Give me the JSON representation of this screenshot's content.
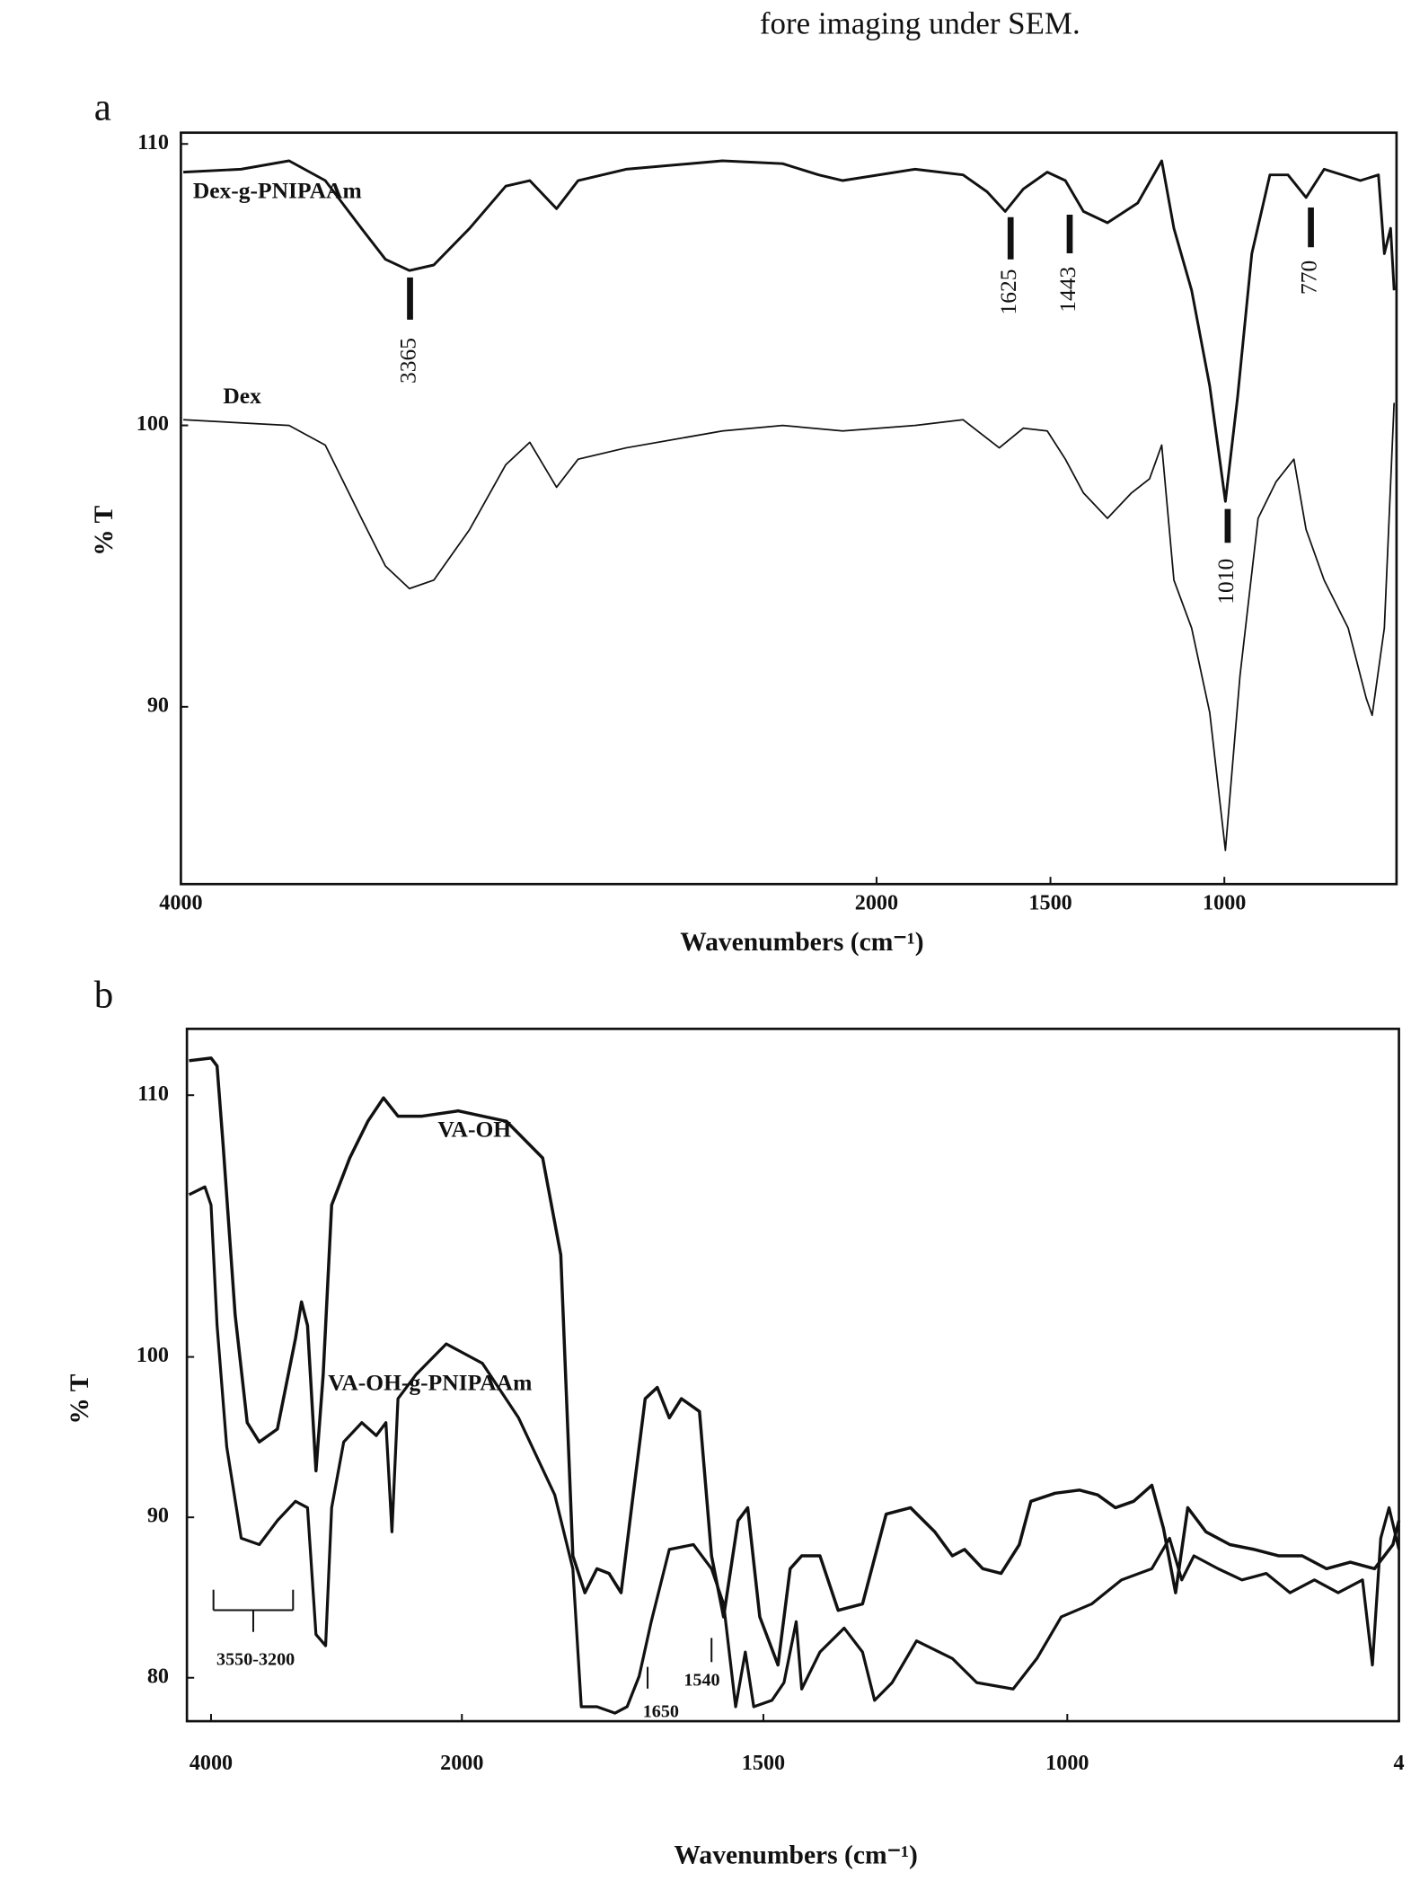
{
  "page_text": "fore imaging under SEM.",
  "chart_data": [
    {
      "type": "line",
      "panel_label": "a",
      "ylabel": "% T",
      "xlabel": "Wavenumbers (cm⁻¹)",
      "xlim": [
        4000,
        505
      ],
      "ylim": [
        83.7,
        110.4
      ],
      "xticks": [
        4000,
        2000,
        1500,
        1000
      ],
      "yticks": [
        90,
        100,
        110
      ],
      "annotations": [
        "3365",
        "1625",
        "1443",
        "770",
        "1010"
      ],
      "series": [
        {
          "name": "Dex-g-PNIPAAm",
          "color": "#111111",
          "x": [
            3993,
            3827,
            3689,
            3585,
            3481,
            3412,
            3343,
            3273,
            3170,
            3066,
            2997,
            2920,
            2858,
            2720,
            2443,
            2270,
            2166,
            2097,
            1889,
            1751,
            1682,
            1630,
            1578,
            1509,
            1457,
            1405,
            1336,
            1249,
            1180,
            1145,
            1094,
            1042,
            997,
            962,
            921,
            869,
            817,
            765,
            713,
            609,
            557,
            540,
            522,
            512
          ],
          "values": [
            109.0,
            109.1,
            109.4,
            108.7,
            107.0,
            105.9,
            105.5,
            105.7,
            107.0,
            108.5,
            108.7,
            107.7,
            108.7,
            109.1,
            109.4,
            109.3,
            108.9,
            108.7,
            109.1,
            108.9,
            108.3,
            107.6,
            108.4,
            109.0,
            108.7,
            107.6,
            107.2,
            107.9,
            109.4,
            107.0,
            104.8,
            101.4,
            97.3,
            101.0,
            106.1,
            108.9,
            108.9,
            108.1,
            109.1,
            108.7,
            108.9,
            106.1,
            107.0,
            104.8
          ]
        },
        {
          "name": "Dex",
          "color": "#111111",
          "x": [
            3993,
            3689,
            3585,
            3481,
            3412,
            3343,
            3273,
            3170,
            3066,
            2997,
            2920,
            2858,
            2720,
            2443,
            2270,
            2097,
            1889,
            1751,
            1647,
            1578,
            1509,
            1457,
            1405,
            1336,
            1267,
            1215,
            1180,
            1145,
            1094,
            1042,
            997,
            955,
            903,
            851,
            800,
            765,
            713,
            644,
            592,
            575,
            540,
            512
          ],
          "values": [
            100.2,
            100.0,
            99.3,
            96.7,
            95.0,
            94.2,
            94.5,
            96.3,
            98.6,
            99.4,
            97.8,
            98.8,
            99.2,
            99.8,
            100.0,
            99.8,
            100.0,
            100.2,
            99.2,
            99.9,
            99.8,
            98.8,
            97.6,
            96.7,
            97.6,
            98.1,
            99.3,
            94.5,
            92.8,
            89.8,
            84.9,
            91.1,
            96.7,
            98.0,
            98.8,
            96.3,
            94.5,
            92.8,
            90.3,
            89.7,
            92.8,
            100.8
          ]
        }
      ]
    },
    {
      "type": "line",
      "panel_label": "b",
      "ylabel": "% T",
      "xlabel": "Wavenumbers (cm⁻¹)",
      "xlim": [
        4190,
        400
      ],
      "ylim": [
        77.3,
        112.5
      ],
      "xticks": [
        4000,
        2000,
        1500,
        1000,
        {
          "value": 400,
          "label": "4"
        }
      ],
      "yticks": [
        80,
        90,
        100,
        110
      ],
      "annotations": [
        "3550-3200",
        "1650",
        "1540"
      ],
      "series": [
        {
          "name": "VA-OH",
          "color": "#111111",
          "x": [
            4173,
            4000,
            3952,
            3904,
            3808,
            3712,
            3615,
            3471,
            3327,
            3279,
            3231,
            3163,
            3106,
            3038,
            2894,
            2750,
            2625,
            2510,
            2317,
            2029,
            1926,
            1866,
            1836,
            1816,
            1796,
            1776,
            1756,
            1736,
            1716,
            1696,
            1676,
            1656,
            1636,
            1606,
            1586,
            1566,
            1542,
            1526,
            1506,
            1476,
            1456,
            1437,
            1407,
            1377,
            1337,
            1298,
            1258,
            1218,
            1189,
            1169,
            1139,
            1109,
            1079,
            1060,
            1020,
            978,
            945,
            913,
            880,
            847,
            826,
            804,
            782,
            749,
            706,
            662,
            618,
            575,
            531,
            488,
            444,
            411,
            400
          ],
          "values": [
            111.3,
            111.4,
            111.1,
            108.1,
            101.6,
            95.9,
            94.7,
            95.5,
            100.7,
            102.1,
            101.2,
            92.9,
            98.9,
            105.8,
            107.6,
            109.0,
            109.9,
            109.2,
            109.2,
            109.4,
            109.0,
            107.6,
            103.9,
            87.6,
            85.3,
            86.8,
            86.5,
            85.3,
            91.4,
            97.4,
            98.1,
            96.2,
            97.4,
            96.6,
            87.6,
            83.8,
            89.8,
            90.6,
            83.8,
            80.8,
            86.8,
            87.6,
            87.6,
            84.2,
            84.6,
            90.2,
            90.6,
            89.1,
            87.6,
            88.0,
            86.8,
            86.5,
            88.3,
            91.0,
            91.5,
            91.7,
            91.4,
            90.6,
            91.0,
            92.0,
            89.3,
            85.3,
            90.6,
            89.1,
            88.3,
            88.0,
            87.6,
            87.6,
            86.8,
            87.2,
            86.8,
            88.3,
            89.8
          ]
        },
        {
          "name": "VA-OH-g-PNIPAAm",
          "color": "#111111",
          "x": [
            4173,
            4048,
            4000,
            3952,
            3875,
            3760,
            3615,
            3471,
            3327,
            3231,
            3163,
            3087,
            3038,
            2942,
            2798,
            2683,
            2606,
            2558,
            2510,
            2365,
            2125,
            1966,
            1906,
            1846,
            1816,
            1802,
            1776,
            1746,
            1726,
            1706,
            1686,
            1656,
            1616,
            1586,
            1566,
            1546,
            1530,
            1516,
            1486,
            1466,
            1446,
            1437,
            1407,
            1367,
            1337,
            1317,
            1288,
            1248,
            1189,
            1149,
            1089,
            1050,
            1010,
            956,
            902,
            847,
            815,
            793,
            771,
            727,
            684,
            640,
            597,
            553,
            510,
            466,
            448,
            433,
            418,
            400
          ],
          "values": [
            106.2,
            106.5,
            105.8,
            101.2,
            94.4,
            88.7,
            88.3,
            89.8,
            91.0,
            90.6,
            82.7,
            82.0,
            90.6,
            94.7,
            95.9,
            95.1,
            95.9,
            89.1,
            97.4,
            98.9,
            100.5,
            99.6,
            96.2,
            91.4,
            86.8,
            78.2,
            78.2,
            77.8,
            78.2,
            80.1,
            83.5,
            88.0,
            88.3,
            86.8,
            84.6,
            78.2,
            81.6,
            78.2,
            78.6,
            79.7,
            83.5,
            79.3,
            81.6,
            83.1,
            81.6,
            78.6,
            79.7,
            82.3,
            81.2,
            79.7,
            79.3,
            81.2,
            83.8,
            84.6,
            86.1,
            86.8,
            88.7,
            86.1,
            87.6,
            86.8,
            86.1,
            86.5,
            85.3,
            86.1,
            85.3,
            86.1,
            80.8,
            88.7,
            90.6,
            88.0
          ]
        }
      ]
    }
  ]
}
